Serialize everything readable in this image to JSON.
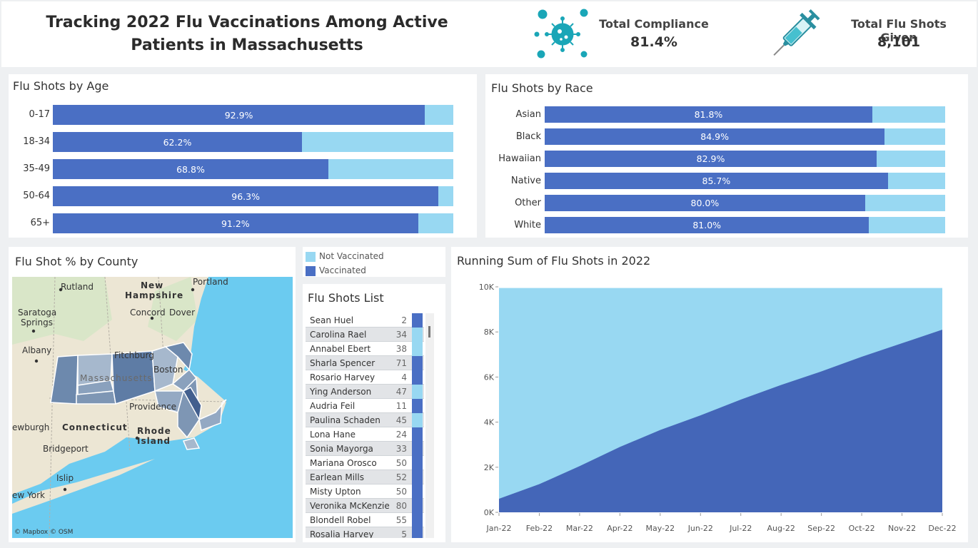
{
  "header": {
    "title": "Tracking 2022 Flu Vaccinations Among Active Patients in Massachusetts",
    "compliance_label": "Total Compliance",
    "compliance_value": "81.4%",
    "shots_label": "Total Flu Shots Given",
    "shots_value": "8,101"
  },
  "colors": {
    "vaccinated": "#4a6fc4",
    "not_vaccinated": "#98d8f2",
    "area_dark": "#4466b8",
    "map_water": "#6bcbf0"
  },
  "age_chart": {
    "title": "Flu Shots by Age",
    "rows": [
      {
        "label": "0-17",
        "value": 92.9,
        "text": "92.9%"
      },
      {
        "label": "18-34",
        "value": 62.2,
        "text": "62.2%"
      },
      {
        "label": "35-49",
        "value": 68.8,
        "text": "68.8%"
      },
      {
        "label": "50-64",
        "value": 96.3,
        "text": "96.3%"
      },
      {
        "label": "65+",
        "value": 91.2,
        "text": "91.2%"
      }
    ]
  },
  "race_chart": {
    "title": "Flu Shots by Race",
    "rows": [
      {
        "label": "Asian",
        "value": 81.8,
        "text": "81.8%"
      },
      {
        "label": "Black",
        "value": 84.9,
        "text": "84.9%"
      },
      {
        "label": "Hawaiian",
        "value": 82.9,
        "text": "82.9%"
      },
      {
        "label": "Native",
        "value": 85.7,
        "text": "85.7%"
      },
      {
        "label": "Other",
        "value": 80.0,
        "text": "80.0%"
      },
      {
        "label": "White",
        "value": 81.0,
        "text": "81.0%"
      }
    ]
  },
  "map": {
    "title": "Flu Shot % by County",
    "attribution": "© Mapbox © OSM",
    "places": [
      "Rutland",
      "New",
      "Hampshire",
      "Portland",
      "Saratoga",
      "Springs",
      "Concord",
      "Dover",
      "Albany",
      "Fitchburg",
      "Massachusetts",
      "Boston",
      "Providence",
      "ewburgh",
      "Connecticut",
      "Rhode",
      "Island",
      "Bridgeport",
      "Islip",
      "ew York"
    ]
  },
  "legend": {
    "not_vaccinated": "Not Vaccinated",
    "vaccinated": "Vaccinated"
  },
  "flu_list": {
    "title": "Flu Shots List",
    "rows": [
      {
        "name": "Sean Huel",
        "count": "2",
        "status": "vaccinated"
      },
      {
        "name": "Carolina Rael",
        "count": "34",
        "status": "not_vaccinated"
      },
      {
        "name": "Annabel Ebert",
        "count": "38",
        "status": "not_vaccinated"
      },
      {
        "name": "Sharla Spencer",
        "count": "71",
        "status": "vaccinated"
      },
      {
        "name": "Rosario Harvey",
        "count": "4",
        "status": "vaccinated"
      },
      {
        "name": "Ying Anderson",
        "count": "47",
        "status": "not_vaccinated"
      },
      {
        "name": "Audria Feil",
        "count": "11",
        "status": "vaccinated"
      },
      {
        "name": "Paulina Schaden",
        "count": "45",
        "status": "not_vaccinated"
      },
      {
        "name": "Lona Hane",
        "count": "24",
        "status": "vaccinated"
      },
      {
        "name": "Sonia Mayorga",
        "count": "33",
        "status": "vaccinated"
      },
      {
        "name": "Mariana Orosco",
        "count": "50",
        "status": "vaccinated"
      },
      {
        "name": "Earlean Mills",
        "count": "52",
        "status": "vaccinated"
      },
      {
        "name": "Misty Upton",
        "count": "50",
        "status": "vaccinated"
      },
      {
        "name": "Veronika McKenzie",
        "count": "80",
        "status": "vaccinated"
      },
      {
        "name": "Blondell Robel",
        "count": "55",
        "status": "vaccinated"
      },
      {
        "name": "Rosalia Harvey",
        "count": "5",
        "status": "vaccinated"
      }
    ]
  },
  "chart_data": {
    "type": "area",
    "title": "Running Sum of Flu Shots in 2022",
    "x": [
      "Jan-22",
      "Feb-22",
      "Mar-22",
      "Apr-22",
      "May-22",
      "Jun-22",
      "Jul-22",
      "Aug-22",
      "Sep-22",
      "Oct-22",
      "Nov-22",
      "Dec-22"
    ],
    "y_ticks": [
      "0K",
      "2K",
      "4K",
      "6K",
      "8K",
      "10K"
    ],
    "ylim": [
      0,
      10000
    ],
    "series": [
      {
        "name": "Vaccinated",
        "values": [
          600,
          1250,
          2050,
          2900,
          3650,
          4300,
          5000,
          5650,
          6250,
          6900,
          7500,
          8101
        ]
      },
      {
        "name": "Not Vaccinated",
        "values": [
          9350,
          8700,
          7900,
          7050,
          6300,
          5650,
          4950,
          4300,
          3700,
          3050,
          2450,
          1849
        ]
      }
    ]
  }
}
